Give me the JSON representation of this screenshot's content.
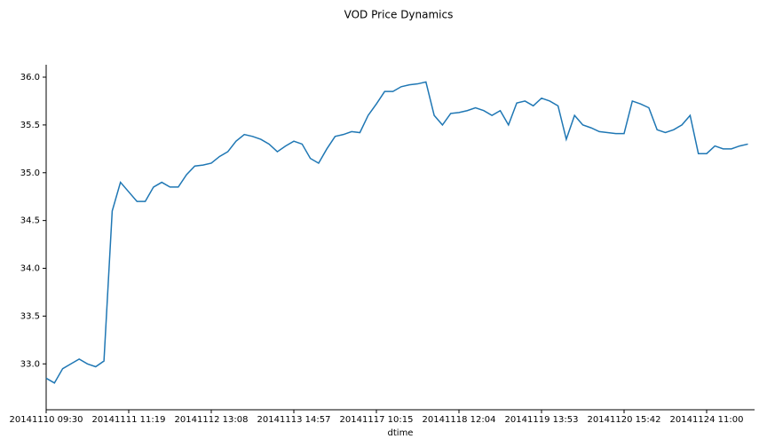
{
  "chart_data": {
    "type": "line",
    "title": "VOD Price Dynamics",
    "xlabel": "dtime",
    "categories": [
      "20141110 09:30",
      null,
      null,
      null,
      null,
      null,
      null,
      null,
      null,
      null,
      "20141111 11:19",
      null,
      null,
      null,
      null,
      null,
      null,
      null,
      null,
      null,
      "20141112 13:08",
      null,
      null,
      null,
      null,
      null,
      null,
      null,
      null,
      null,
      "20141113 14:57",
      null,
      null,
      null,
      null,
      null,
      null,
      null,
      null,
      null,
      "20141117 10:15",
      null,
      null,
      null,
      null,
      null,
      null,
      null,
      null,
      null,
      "20141118 12:04",
      null,
      null,
      null,
      null,
      null,
      null,
      null,
      null,
      null,
      "20141119 13:53",
      null,
      null,
      null,
      null,
      null,
      null,
      null,
      null,
      null,
      "20141120 15:42",
      null,
      null,
      null,
      null,
      null,
      null,
      null,
      null,
      null,
      "20141124 11:00",
      null,
      null,
      null,
      null,
      null
    ],
    "series": [
      {
        "name": "VOD",
        "color": "#1f77b4",
        "values": [
          32.85,
          32.8,
          32.95,
          33.0,
          33.05,
          33.0,
          32.97,
          33.03,
          34.6,
          34.9,
          34.8,
          34.7,
          34.7,
          34.85,
          34.9,
          34.85,
          34.85,
          34.98,
          35.07,
          35.08,
          35.1,
          35.17,
          35.22,
          35.33,
          35.4,
          35.38,
          35.35,
          35.3,
          35.22,
          35.28,
          35.33,
          35.3,
          35.15,
          35.1,
          35.25,
          35.38,
          35.4,
          35.43,
          35.42,
          35.6,
          35.72,
          35.85,
          35.85,
          35.9,
          35.92,
          35.93,
          35.95,
          35.6,
          35.5,
          35.62,
          35.63,
          35.65,
          35.68,
          35.65,
          35.6,
          35.65,
          35.5,
          35.73,
          35.75,
          35.7,
          35.78,
          35.75,
          35.7,
          35.35,
          35.6,
          35.5,
          35.47,
          35.43,
          35.42,
          35.41,
          35.41,
          35.75,
          35.72,
          35.68,
          35.45,
          35.42,
          35.45,
          35.5,
          35.6,
          35.2,
          35.2,
          35.28,
          35.25,
          35.25,
          35.28,
          35.3
        ]
      }
    ],
    "ylim": [
      32.52,
      36.13
    ],
    "yticks": [
      {
        "value": 33.0,
        "label": "33.0"
      },
      {
        "value": 33.5,
        "label": "33.5"
      },
      {
        "value": 34.0,
        "label": "34.0"
      },
      {
        "value": 34.5,
        "label": "34.5"
      },
      {
        "value": 35.0,
        "label": "35.0"
      },
      {
        "value": 35.5,
        "label": "35.5"
      },
      {
        "value": 36.0,
        "label": "36.0"
      }
    ]
  }
}
